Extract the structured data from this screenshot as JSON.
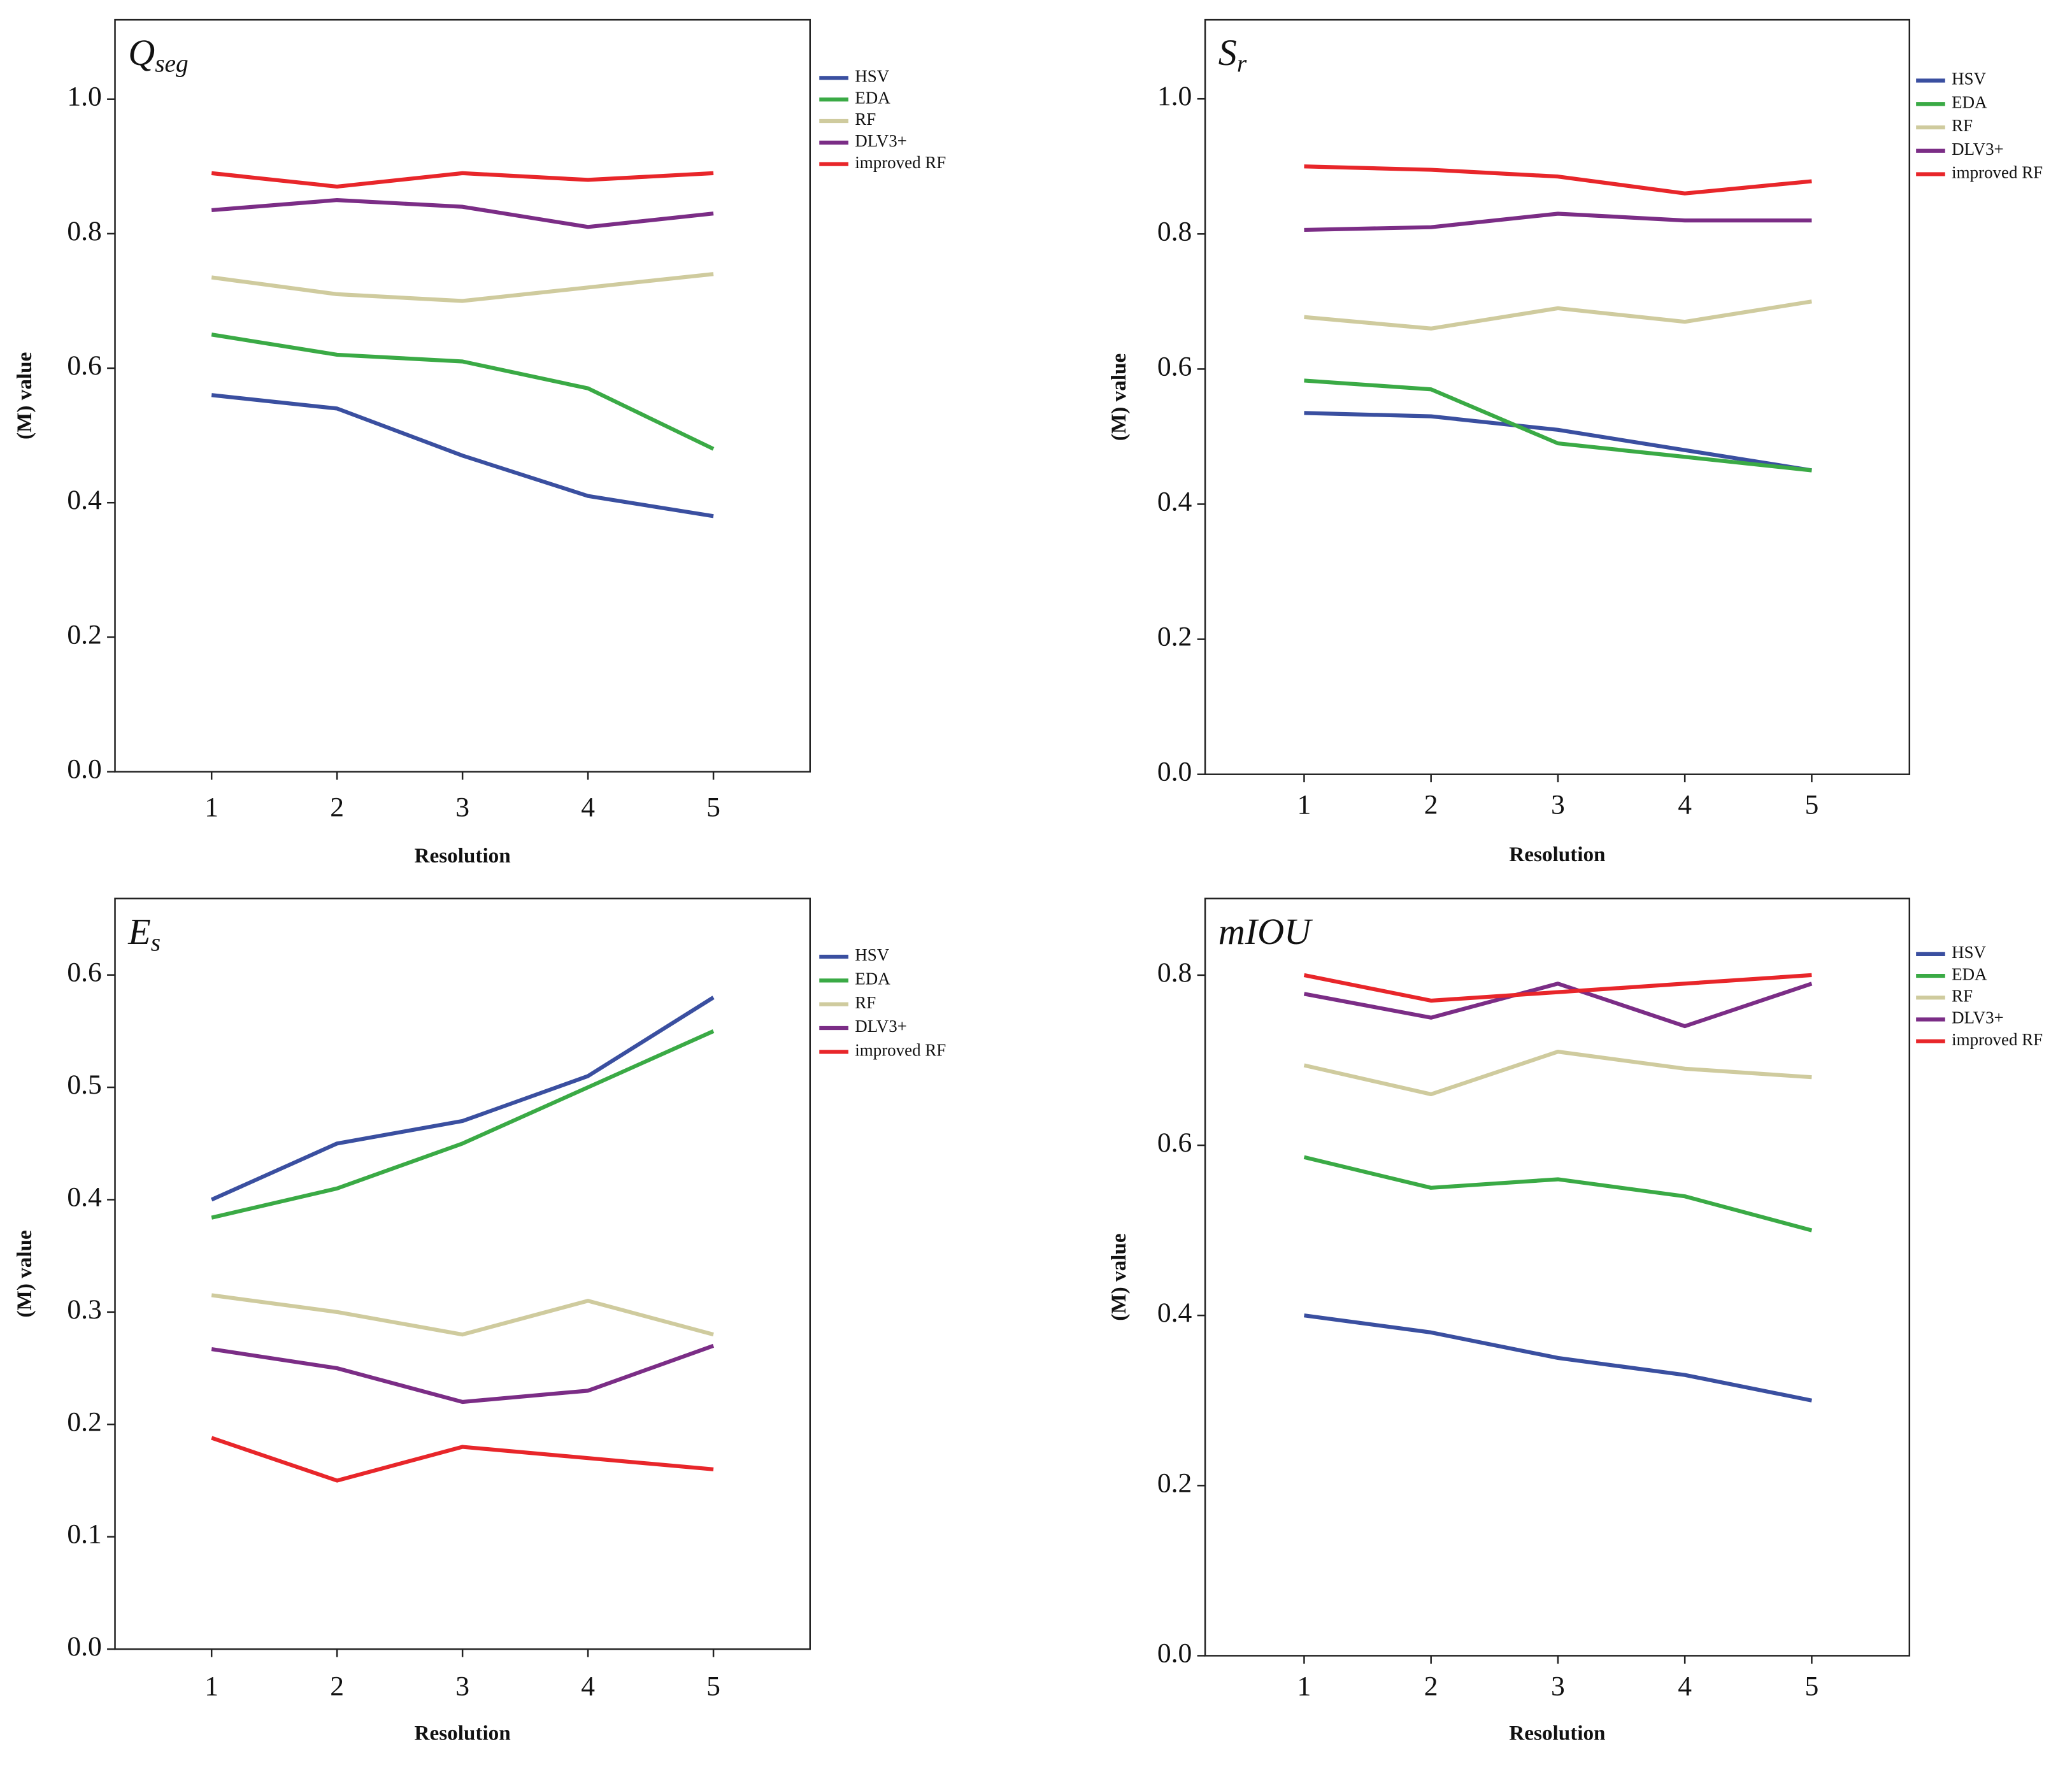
{
  "chart_data": [
    {
      "type": "line",
      "title": {
        "text": "Q",
        "subscript": "seg"
      },
      "xlabel": "Resolution",
      "ylabel": "(M) value",
      "x": [
        1,
        2,
        3,
        4,
        5
      ],
      "xlim": [
        0.23,
        5.77
      ],
      "xticks": [
        1,
        2,
        3,
        4,
        5
      ],
      "ylim": [
        0,
        1.118
      ],
      "yticks": [
        {
          "value": 0,
          "label": "0.0"
        },
        0.2,
        0.4,
        0.6,
        0.8,
        {
          "value": 1,
          "label": "1.0"
        }
      ],
      "series": [
        {
          "name": "HSV",
          "color": "#3a4fa0",
          "values": [
            0.56,
            0.54,
            0.47,
            0.41,
            0.38
          ]
        },
        {
          "name": "EDA",
          "color": "#3aaa45",
          "values": [
            0.65,
            0.62,
            0.61,
            0.57,
            0.48
          ]
        },
        {
          "name": "RF",
          "color": "#cfcb9e",
          "values": [
            0.735,
            0.71,
            0.7,
            0.72,
            0.74
          ]
        },
        {
          "name": "DLV3+",
          "color": "#7b2d86",
          "values": [
            0.835,
            0.85,
            0.84,
            0.81,
            0.83
          ]
        },
        {
          "name": "improved RF",
          "color": "#e8262a",
          "values": [
            0.89,
            0.87,
            0.89,
            0.88,
            0.89
          ]
        }
      ]
    },
    {
      "type": "line",
      "title": {
        "text": "S",
        "subscript": "r"
      },
      "xlabel": "Resolution",
      "ylabel": "(M) value",
      "x": [
        1,
        2,
        3,
        4,
        5
      ],
      "xlim": [
        0.22,
        5.77
      ],
      "xticks": [
        1,
        2,
        3,
        4,
        5
      ],
      "ylim": [
        0,
        1.117
      ],
      "yticks": [
        {
          "value": 0,
          "label": "0.0"
        },
        0.2,
        0.4,
        0.6,
        0.8,
        {
          "value": 1,
          "label": "1.0"
        }
      ],
      "series": [
        {
          "name": "HSV",
          "color": "#3a4fa0",
          "values": [
            0.535,
            0.53,
            0.51,
            0.48,
            0.45
          ]
        },
        {
          "name": "EDA",
          "color": "#3aaa45",
          "values": [
            0.583,
            0.57,
            0.49,
            0.47,
            0.45
          ]
        },
        {
          "name": "RF",
          "color": "#cfcb9e",
          "values": [
            0.677,
            0.66,
            0.69,
            0.67,
            0.7
          ]
        },
        {
          "name": "DLV3+",
          "color": "#7b2d86",
          "values": [
            0.806,
            0.81,
            0.83,
            0.82,
            0.82
          ]
        },
        {
          "name": "improved RF",
          "color": "#e8262a",
          "values": [
            0.9,
            0.895,
            0.885,
            0.86,
            0.878
          ]
        }
      ]
    },
    {
      "type": "line",
      "title": {
        "text": "E",
        "subscript": "s"
      },
      "xlabel": "Resolution",
      "ylabel": "(M) value",
      "x": [
        1,
        2,
        3,
        4,
        5
      ],
      "xlim": [
        0.23,
        5.77
      ],
      "xticks": [
        1,
        2,
        3,
        4,
        5
      ],
      "ylim": [
        0,
        0.668
      ],
      "yticks": [
        {
          "value": 0,
          "label": "0.0"
        },
        0.1,
        0.2,
        0.3,
        0.4,
        0.5,
        0.6
      ],
      "series": [
        {
          "name": "HSV",
          "color": "#3a4fa0",
          "values": [
            0.4,
            0.45,
            0.47,
            0.51,
            0.58
          ]
        },
        {
          "name": "EDA",
          "color": "#3aaa45",
          "values": [
            0.384,
            0.41,
            0.45,
            0.5,
            0.55
          ]
        },
        {
          "name": "RF",
          "color": "#cfcb9e",
          "values": [
            0.315,
            0.3,
            0.28,
            0.31,
            0.28
          ]
        },
        {
          "name": "DLV3+",
          "color": "#7b2d86",
          "values": [
            0.267,
            0.25,
            0.22,
            0.23,
            0.27
          ]
        },
        {
          "name": "improved RF",
          "color": "#e8262a",
          "values": [
            0.188,
            0.15,
            0.18,
            0.17,
            0.16
          ]
        }
      ]
    },
    {
      "type": "line",
      "title": {
        "text": "mIOU"
      },
      "xlabel": "Resolution",
      "ylabel": "(M) value",
      "x": [
        1,
        2,
        3,
        4,
        5
      ],
      "xlim": [
        0.22,
        5.77
      ],
      "xticks": [
        1,
        2,
        3,
        4,
        5
      ],
      "ylim": [
        0,
        0.89
      ],
      "yticks": [
        {
          "value": 0,
          "label": "0.0"
        },
        0.2,
        0.4,
        0.6,
        0.8
      ],
      "series": [
        {
          "name": "HSV",
          "color": "#3a4fa0",
          "values": [
            0.4,
            0.38,
            0.35,
            0.33,
            0.3
          ]
        },
        {
          "name": "EDA",
          "color": "#3aaa45",
          "values": [
            0.586,
            0.55,
            0.56,
            0.54,
            0.5
          ]
        },
        {
          "name": "RF",
          "color": "#cfcb9e",
          "values": [
            0.694,
            0.66,
            0.71,
            0.69,
            0.68
          ]
        },
        {
          "name": "DLV3+",
          "color": "#7b2d86",
          "values": [
            0.778,
            0.75,
            0.79,
            0.74,
            0.79
          ]
        },
        {
          "name": "improved RF",
          "color": "#e8262a",
          "values": [
            0.8,
            0.77,
            0.78,
            0.79,
            0.8
          ]
        }
      ]
    }
  ]
}
